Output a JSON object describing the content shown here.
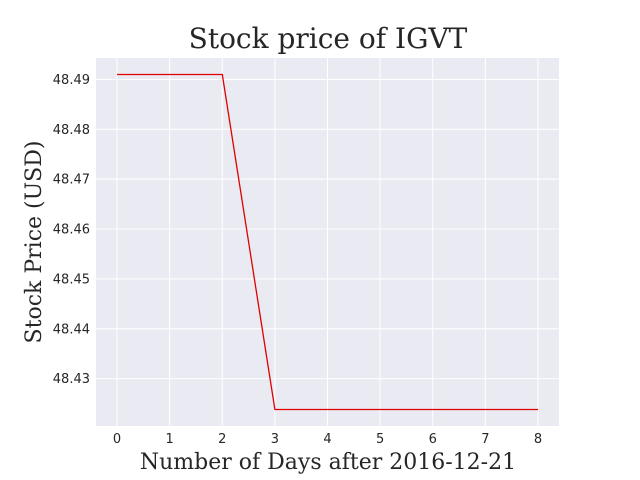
{
  "chart_data": {
    "type": "line",
    "title": "Stock price of IGVT",
    "xlabel": "Number of Days after 2016-12-21",
    "ylabel": "Stock Price (USD)",
    "x": [
      0,
      1,
      2,
      3,
      4,
      5,
      6,
      7,
      8
    ],
    "series": [
      {
        "values": [
          48.491,
          48.491,
          48.491,
          48.4238,
          48.4238,
          48.4238,
          48.4238,
          48.4238,
          48.4238
        ]
      }
    ],
    "xticks": [
      "0",
      "1",
      "2",
      "3",
      "4",
      "5",
      "6",
      "7",
      "8"
    ],
    "yticks": [
      "48.43",
      "48.44",
      "48.45",
      "48.46",
      "48.47",
      "48.48",
      "48.49"
    ],
    "xlim": [
      -0.4,
      8.4
    ],
    "ylim": [
      48.4205,
      48.4943
    ],
    "grid": true,
    "colors": {
      "line": "#e00000",
      "plot_background": "#eaeaf2",
      "grid": "#ffffff"
    }
  }
}
